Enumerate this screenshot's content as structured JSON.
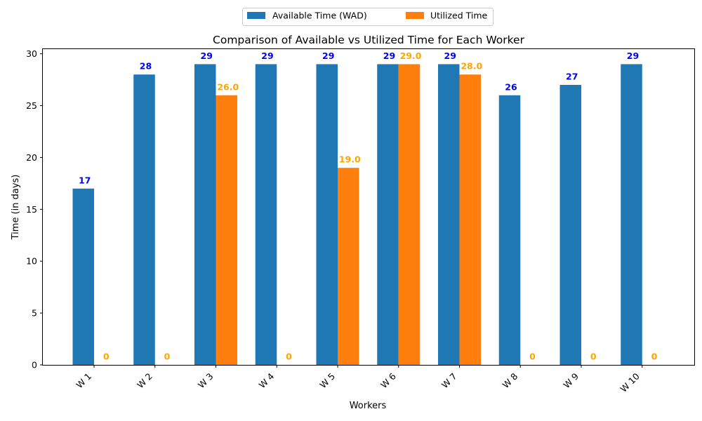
{
  "chart_data": {
    "type": "bar",
    "title": "Comparison of Available vs Utilized Time for Each Worker",
    "xlabel": "Workers",
    "ylabel": "Time (in days)",
    "categories": [
      "W 1",
      "W 2",
      "W 3",
      "W 4",
      "W 5",
      "W 6",
      "W 7",
      "W 8",
      "W 9",
      "W 10"
    ],
    "series": [
      {
        "name": "Available Time (WAD)",
        "values": [
          17,
          28,
          29,
          29,
          29,
          29,
          29,
          26,
          27,
          29
        ],
        "labels": [
          "17",
          "28",
          "29",
          "29",
          "29",
          "29",
          "29",
          "26",
          "27",
          "29"
        ],
        "color": "#1f77b4",
        "label_color": "#0000ff"
      },
      {
        "name": "Utilized Time",
        "values": [
          0,
          0,
          26,
          0,
          19,
          29,
          28,
          0,
          0,
          0
        ],
        "labels": [
          "0",
          "0",
          "26.0",
          "0",
          "19.0",
          "29.0",
          "28.0",
          "0",
          "0",
          "0"
        ],
        "color": "#ff7f0e",
        "label_color": "#ffa500"
      }
    ],
    "yticks": [
      "0",
      "5",
      "10",
      "15",
      "20",
      "25",
      "30"
    ],
    "ylim": [
      0,
      30.45
    ],
    "grid": false,
    "legend_position": "top-center, outside plot"
  }
}
